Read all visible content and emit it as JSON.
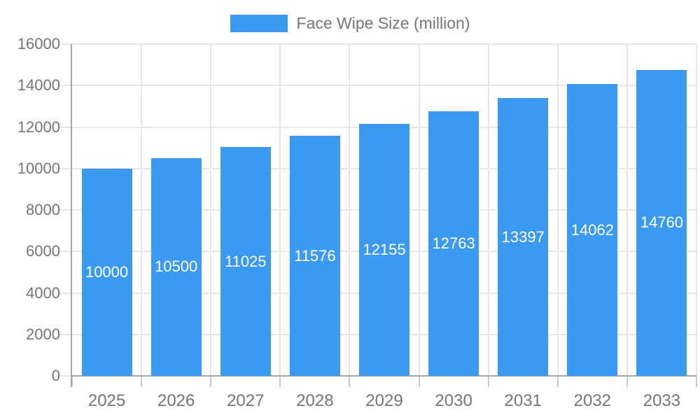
{
  "chart_data": {
    "type": "bar",
    "title": "",
    "legend": {
      "label": "Face Wipe Size (million)",
      "position": "top"
    },
    "categories": [
      "2025",
      "2026",
      "2027",
      "2028",
      "2029",
      "2030",
      "2031",
      "2032",
      "2033"
    ],
    "series": [
      {
        "name": "Face Wipe Size (million)",
        "values": [
          10000,
          10500,
          11025,
          11576,
          12155,
          12763,
          13397,
          14062,
          14760
        ]
      }
    ],
    "value_labels": [
      "10000",
      "10500",
      "11025",
      "11576",
      "12155",
      "12763",
      "13397",
      "14062",
      "14760"
    ],
    "xlabel": "",
    "ylabel": "",
    "ylim": [
      0,
      16000
    ],
    "yticks": [
      0,
      2000,
      4000,
      6000,
      8000,
      10000,
      12000,
      14000,
      16000
    ],
    "grid": true,
    "value_label_position": "inside-center",
    "colors": {
      "bar": "#3B99F0",
      "axis_text": "#757575",
      "value_text": "#FFFFFF",
      "grid_line": "#E6E6E6",
      "axis_line": "#A6A6A6",
      "tick_line": "#CCCCCC",
      "background": "#FFFFFF"
    }
  }
}
